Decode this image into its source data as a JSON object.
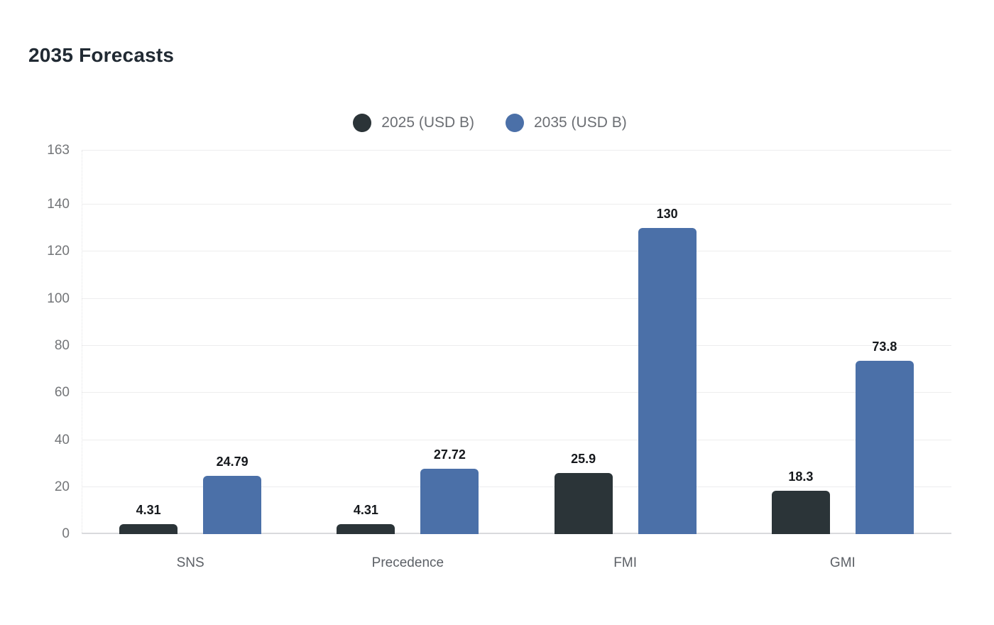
{
  "page": {
    "title": "2035 Forecasts"
  },
  "chart_data": {
    "type": "bar",
    "title": "2035 Forecasts",
    "categories": [
      "SNS",
      "Precedence",
      "FMI",
      "GMI"
    ],
    "series": [
      {
        "name": "2025 (USD B)",
        "color": "#2b3438",
        "values": [
          4.31,
          4.31,
          25.9,
          18.3
        ]
      },
      {
        "name": "2035 (USD B)",
        "color": "#4b70a8",
        "values": [
          24.79,
          27.72,
          130,
          73.8
        ]
      }
    ],
    "value_labels": [
      "4.31",
      "24.79",
      "4.31",
      "27.72",
      "25.9",
      "130",
      "18.3",
      "73.8"
    ],
    "xlabel": "",
    "ylabel": "",
    "ylim": [
      0,
      163
    ],
    "yticks": [
      0,
      20,
      40,
      60,
      80,
      100,
      120,
      140,
      163
    ],
    "grid": true,
    "legend_position": "top-center",
    "colors": {
      "title_text": "#212a33",
      "legend_text": "#6b6e73",
      "tick_text": "#737578",
      "category_text": "#5c6066",
      "value_label_text": "#15181c",
      "gridline": "#ededee",
      "baseline": "#d9dadd",
      "background": "#ffffff"
    }
  }
}
